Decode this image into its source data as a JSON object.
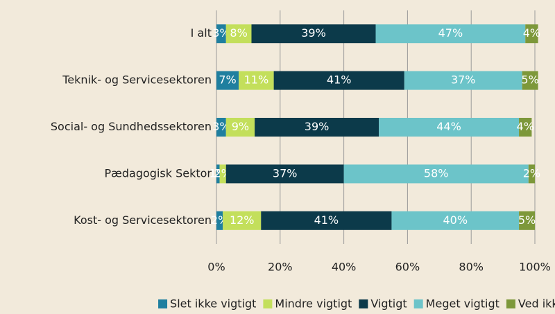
{
  "chart_data": {
    "type": "stacked_barh",
    "categories": [
      "I alt",
      "Teknik- og Servicesektoren",
      "Social- og Sundhedssektoren",
      "Pædagogisk Sektor",
      "Kost- og Servicesektoren"
    ],
    "series": [
      {
        "name": "Slet ikke vigtigt",
        "color": "#1f7f9f",
        "values": [
          3,
          7,
          3,
          1,
          2
        ],
        "value_labels": [
          "3%",
          "7%",
          "3%",
          "1%",
          "2%"
        ]
      },
      {
        "name": "Mindre vigtigt",
        "color": "#c3df5b",
        "values": [
          8,
          11,
          9,
          2,
          12
        ],
        "value_labels": [
          "8%",
          "11%",
          "9%",
          "2%",
          "12%"
        ]
      },
      {
        "name": "Vigtigt",
        "color": "#0c3a4a",
        "values": [
          39,
          41,
          39,
          37,
          41
        ],
        "value_labels": [
          "39%",
          "41%",
          "39%",
          "37%",
          "41%"
        ]
      },
      {
        "name": "Meget vigtigt",
        "color": "#6cc4c9",
        "values": [
          47,
          37,
          44,
          58,
          40
        ],
        "value_labels": [
          "47%",
          "37%",
          "44%",
          "58%",
          "40%"
        ]
      },
      {
        "name": "Ved ikke",
        "color": "#7d983a",
        "values": [
          4,
          5,
          4,
          2,
          5
        ],
        "value_labels": [
          "4%",
          "5%",
          "4%",
          "2%",
          "5%"
        ]
      }
    ],
    "xlim": [
      0,
      100
    ],
    "xticks": [
      {
        "value": 0,
        "label": "0%"
      },
      {
        "value": 20,
        "label": "20%"
      },
      {
        "value": 40,
        "label": "40%"
      },
      {
        "value": 60,
        "label": "60%"
      },
      {
        "value": 80,
        "label": "80%"
      },
      {
        "value": 100,
        "label": "100%"
      }
    ],
    "grid": true,
    "legend": "bottom"
  }
}
